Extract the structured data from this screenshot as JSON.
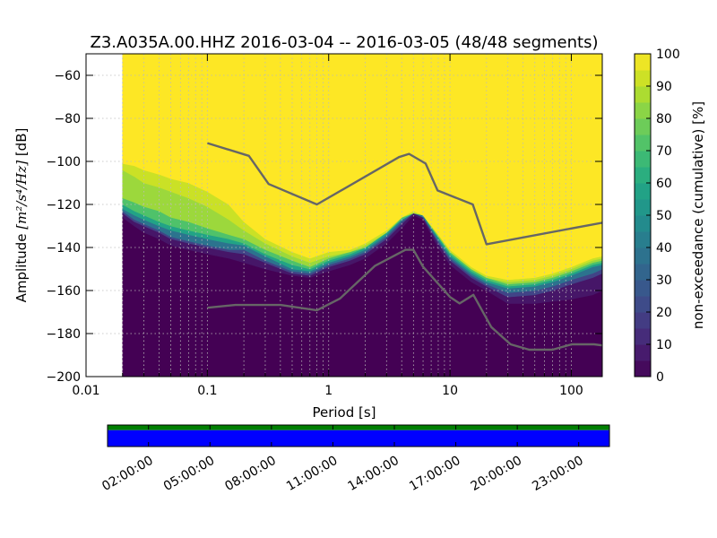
{
  "chart_data": {
    "type": "heatmap",
    "title": "Z3.A035A.00.HHZ   2016-03-04 -- 2016-03-05  (48/48 segments)",
    "xlabel": "Period [s]",
    "ylabel_prefix": "Amplitude ",
    "ylabel_units": "[m²/s⁴/Hz]",
    "ylabel_suffix": " [dB]",
    "x_scale": "log",
    "xlim": [
      0.01,
      180
    ],
    "ylim": [
      -200,
      -50
    ],
    "x_ticks": [
      {
        "value": 0.01,
        "label": "0.01"
      },
      {
        "value": 0.1,
        "label": "0.1"
      },
      {
        "value": 1,
        "label": "1"
      },
      {
        "value": 10,
        "label": "10"
      },
      {
        "value": 100,
        "label": "100"
      }
    ],
    "y_ticks": [
      {
        "value": -60,
        "label": "−60"
      },
      {
        "value": -80,
        "label": "−80"
      },
      {
        "value": -100,
        "label": "−100"
      },
      {
        "value": -120,
        "label": "−120"
      },
      {
        "value": -140,
        "label": "−140"
      },
      {
        "value": -160,
        "label": "−160"
      },
      {
        "value": -180,
        "label": "−180"
      },
      {
        "value": -200,
        "label": "−200"
      }
    ],
    "data_period_start": 0.02,
    "grid": true,
    "colorbar": {
      "label": "non-exceedance (cumulative) [%]",
      "range": [
        0,
        100
      ],
      "ticks": [
        {
          "value": 0,
          "label": "0"
        },
        {
          "value": 10,
          "label": "10"
        },
        {
          "value": 20,
          "label": "20"
        },
        {
          "value": 30,
          "label": "30"
        },
        {
          "value": 40,
          "label": "40"
        },
        {
          "value": 50,
          "label": "50"
        },
        {
          "value": 60,
          "label": "60"
        },
        {
          "value": 70,
          "label": "70"
        },
        {
          "value": 80,
          "label": "80"
        },
        {
          "value": 90,
          "label": "90"
        },
        {
          "value": 100,
          "label": "100"
        }
      ],
      "colormap": "viridis"
    },
    "density_bands": {
      "period": [
        0.02,
        0.025,
        0.03,
        0.04,
        0.05,
        0.07,
        0.1,
        0.15,
        0.2,
        0.3,
        0.5,
        0.7,
        1,
        1.5,
        2,
        3,
        4,
        5,
        6,
        8,
        10,
        15,
        20,
        30,
        50,
        70,
        100,
        150,
        180
      ],
      "p0": [
        -126,
        -130,
        -133,
        -136,
        -139,
        -141,
        -143,
        -145,
        -147,
        -150,
        -153,
        -154,
        -151,
        -148,
        -145,
        -138,
        -131,
        -125,
        -127,
        -140,
        -148,
        -156,
        -160,
        -166,
        -166,
        -165,
        -164,
        -162,
        -160
      ],
      "p5": [
        -124,
        -128,
        -130,
        -133,
        -136,
        -138,
        -140,
        -142,
        -143,
        -147,
        -152,
        -153,
        -149,
        -146,
        -143,
        -136,
        -129,
        -124,
        -126,
        -138,
        -146,
        -154,
        -158,
        -163,
        -162,
        -160,
        -157,
        -154,
        -152
      ],
      "p10": [
        -123,
        -127,
        -129,
        -132,
        -135,
        -137,
        -139,
        -141,
        -141,
        -146,
        -151,
        -152,
        -148,
        -145,
        -142,
        -135,
        -128,
        -124,
        -126,
        -137,
        -145,
        -153,
        -157,
        -161,
        -160,
        -158,
        -155,
        -152,
        -150
      ],
      "p30": [
        -122,
        -125,
        -127,
        -130,
        -132,
        -134,
        -136,
        -138,
        -139,
        -144,
        -150,
        -151,
        -147,
        -144,
        -141,
        -134,
        -127,
        -124,
        -125,
        -136,
        -144,
        -152,
        -156,
        -159,
        -158,
        -156,
        -153,
        -149,
        -148
      ],
      "p50": [
        -120,
        -123,
        -125,
        -128,
        -130,
        -132,
        -134,
        -136,
        -138,
        -143,
        -148,
        -150,
        -146,
        -143,
        -140,
        -133,
        -127,
        -124,
        -125,
        -135,
        -143,
        -151,
        -155,
        -158,
        -157,
        -155,
        -152,
        -148,
        -147
      ],
      "p70": [
        -117,
        -119,
        -121,
        -123,
        -126,
        -128,
        -131,
        -134,
        -136,
        -141,
        -146,
        -149,
        -145,
        -142,
        -140,
        -133,
        -126,
        -124,
        -125,
        -135,
        -142,
        -150,
        -154,
        -157,
        -156,
        -154,
        -151,
        -147,
        -146
      ],
      "p90": [
        -104,
        -107,
        -110,
        -112,
        -114,
        -117,
        -121,
        -127,
        -132,
        -138,
        -144,
        -147,
        -144,
        -142,
        -139,
        -133,
        -126,
        -124,
        -125,
        -134,
        -142,
        -150,
        -154,
        -156,
        -155,
        -153,
        -150,
        -146,
        -145
      ],
      "p100": [
        -101,
        -102,
        -104,
        -106,
        -108,
        -110,
        -114,
        -120,
        -128,
        -136,
        -142,
        -145,
        -142,
        -141,
        -138,
        -132,
        -126,
        -123,
        -125,
        -134,
        -141,
        -149,
        -153,
        -155,
        -154,
        -152,
        -149,
        -145,
        -144
      ]
    },
    "noise_models": [
      {
        "model": "high",
        "points": [
          [
            0.1,
            -91.5
          ],
          [
            0.22,
            -97.4
          ],
          [
            0.32,
            -110.5
          ],
          [
            0.8,
            -120
          ],
          [
            3.8,
            -98
          ],
          [
            4.6,
            -96.5
          ],
          [
            6.3,
            -101
          ],
          [
            7.9,
            -113.5
          ],
          [
            15.4,
            -120
          ],
          [
            20,
            -138.5
          ],
          [
            180,
            -128.5
          ]
        ]
      },
      {
        "model": "low",
        "points": [
          [
            0.1,
            -168
          ],
          [
            0.17,
            -166.7
          ],
          [
            0.4,
            -166.7
          ],
          [
            0.8,
            -169.2
          ],
          [
            1.24,
            -163.7
          ],
          [
            2.4,
            -148.6
          ],
          [
            4.3,
            -141.1
          ],
          [
            5,
            -141.1
          ],
          [
            6,
            -149
          ],
          [
            10,
            -163
          ],
          [
            12,
            -166
          ],
          [
            15.6,
            -162
          ],
          [
            21.9,
            -177
          ],
          [
            31.6,
            -185
          ],
          [
            45,
            -187.5
          ],
          [
            70,
            -187.5
          ],
          [
            101,
            -185
          ],
          [
            154,
            -185
          ],
          [
            180,
            -185.5
          ]
        ]
      }
    ],
    "segment_coverage": {
      "tick_labels": [
        "02:00:00",
        "05:00:00",
        "08:00:00",
        "11:00:00",
        "14:00:00",
        "17:00:00",
        "20:00:00",
        "23:00:00"
      ],
      "tick_hours": [
        2,
        5,
        8,
        11,
        14,
        17,
        20,
        23
      ],
      "time_range_hours": [
        0,
        24.5
      ],
      "rows": [
        {
          "color": "#007f00",
          "covered_fraction": 1.0
        },
        {
          "color": "#0000ff",
          "covered_fraction": 1.0
        }
      ]
    }
  },
  "colors": {
    "noise_model_line": "#666666",
    "grid": "#bbbbbb",
    "axes": "#000000"
  }
}
